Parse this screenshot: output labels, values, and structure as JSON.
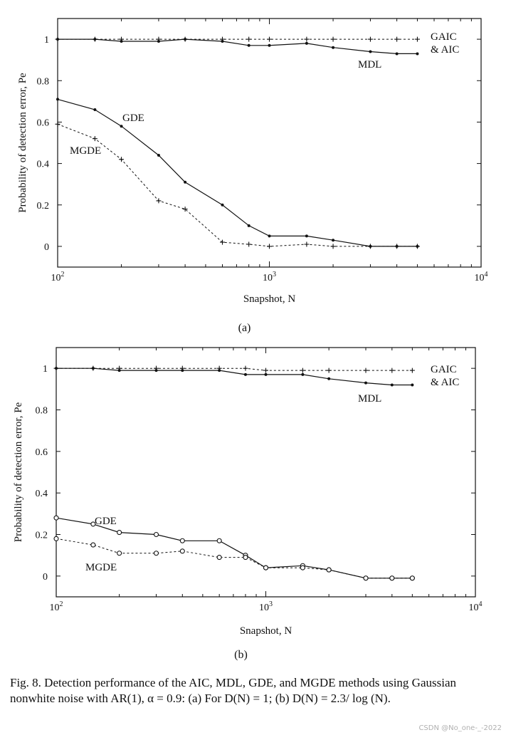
{
  "chart_data": [
    {
      "panel": "(a)",
      "type": "line",
      "x_scale": "log",
      "xlim": [
        100,
        10000
      ],
      "ylim": [
        -0.1,
        1.1
      ],
      "xlabel": "Snapshot, N",
      "ylabel": "Probability of detection error, Pe",
      "x_tick_labels": [
        "10^2",
        "10^3",
        "10^4"
      ],
      "y_tick_labels": [
        "0",
        "0.2",
        "0.4",
        "0.6",
        "0.8",
        "1"
      ],
      "y_ticks": [
        0,
        0.2,
        0.4,
        0.6,
        0.8,
        1
      ],
      "x": [
        100,
        150,
        200,
        300,
        400,
        600,
        800,
        1000,
        1500,
        2000,
        3000,
        4000,
        5000
      ],
      "series": [
        {
          "name": "GAIC & AIC",
          "style": "dashed",
          "marker": "plus",
          "values": [
            1.0,
            1.0,
            1.0,
            1.0,
            1.0,
            1.0,
            1.0,
            1.0,
            1.0,
            1.0,
            1.0,
            1.0,
            1.0
          ]
        },
        {
          "name": "MDL",
          "style": "solid",
          "marker": "dot",
          "values": [
            1.0,
            1.0,
            0.99,
            0.99,
            1.0,
            0.99,
            0.97,
            0.97,
            0.98,
            0.96,
            0.94,
            0.93,
            0.93
          ]
        },
        {
          "name": "GDE",
          "style": "solid",
          "marker": "dot",
          "values": [
            0.71,
            0.66,
            0.58,
            0.44,
            0.31,
            0.2,
            0.1,
            0.05,
            0.05,
            0.03,
            0.0,
            0.0,
            0.0
          ]
        },
        {
          "name": "MGDE",
          "style": "dashed",
          "marker": "plus",
          "values": [
            0.59,
            0.52,
            0.42,
            0.22,
            0.18,
            0.02,
            0.01,
            0.0,
            0.01,
            0.0,
            0.0,
            0.0,
            0.0
          ]
        }
      ],
      "labels": {
        "gaic_line1": "GAIC",
        "gaic_line2": "& AIC",
        "mdl": "MDL",
        "gde": "GDE",
        "mgde": "MGDE"
      },
      "panel_label": "(a)"
    },
    {
      "panel": "(b)",
      "type": "line",
      "x_scale": "log",
      "xlim": [
        100,
        10000
      ],
      "ylim": [
        -0.1,
        1.1
      ],
      "xlabel": "Snapshot, N",
      "ylabel": "Probability of detection error, Pe",
      "x_tick_labels": [
        "10^2",
        "10^3",
        "10^4"
      ],
      "y_tick_labels": [
        "0",
        "0.2",
        "0.4",
        "0.6",
        "0.8",
        "1"
      ],
      "y_ticks": [
        0,
        0.2,
        0.4,
        0.6,
        0.8,
        1
      ],
      "x": [
        100,
        150,
        200,
        300,
        400,
        600,
        800,
        1000,
        1500,
        2000,
        3000,
        4000,
        5000
      ],
      "series": [
        {
          "name": "GAIC & AIC",
          "style": "dashed",
          "marker": "plus",
          "values": [
            1.0,
            1.0,
            1.0,
            1.0,
            1.0,
            1.0,
            1.0,
            0.99,
            0.99,
            0.99,
            0.99,
            0.99,
            0.99
          ]
        },
        {
          "name": "MDL",
          "style": "solid",
          "marker": "dot",
          "values": [
            1.0,
            1.0,
            0.99,
            0.99,
            0.99,
            0.99,
            0.97,
            0.97,
            0.97,
            0.95,
            0.93,
            0.92,
            0.92
          ]
        },
        {
          "name": "GDE",
          "style": "solid",
          "marker": "circle",
          "values": [
            0.28,
            0.25,
            0.21,
            0.2,
            0.17,
            0.17,
            0.1,
            0.04,
            0.05,
            0.03,
            -0.01,
            -0.01,
            -0.01
          ]
        },
        {
          "name": "MGDE",
          "style": "dashed",
          "marker": "circle",
          "values": [
            0.18,
            0.15,
            0.11,
            0.11,
            0.12,
            0.09,
            0.09,
            0.04,
            0.04,
            0.03,
            -0.01,
            -0.01,
            -0.01
          ]
        }
      ],
      "labels": {
        "gaic_line1": "GAIC",
        "gaic_line2": "& AIC",
        "mdl": "MDL",
        "gde": "GDE",
        "mgde": "MGDE"
      },
      "panel_label": "(b)"
    }
  ],
  "caption": "Fig. 8.   Detection performance of the AIC, MDL, GDE, and MGDE methods using Gaussian nonwhite noise with AR(1), α = 0.9: (a) For D(N) = 1; (b) D(N) = 2.3/ log (N).",
  "watermark": "CSDN @No_one-_-2022",
  "colors": {
    "ink": "#111111",
    "background": "#ffffff"
  }
}
